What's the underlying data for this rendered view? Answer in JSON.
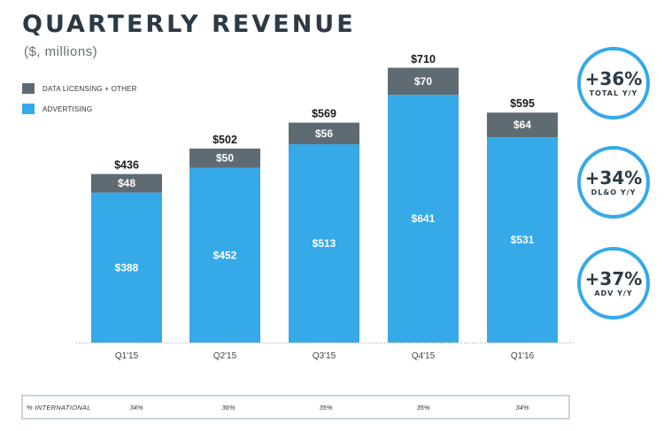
{
  "header": {
    "title": "QUARTERLY REVENUE",
    "subtitle": "($, millions)"
  },
  "legend": {
    "items": [
      {
        "label": "DATA LICENSING + OTHER",
        "color": "#5f6b72"
      },
      {
        "label": "ADVERTISING",
        "color": "#36a9e9"
      }
    ]
  },
  "chart_data": {
    "type": "bar",
    "stacked": true,
    "categories": [
      "Q1'15",
      "Q2'15",
      "Q3'15",
      "Q4'15",
      "Q1'16"
    ],
    "series": [
      {
        "name": "ADVERTISING",
        "color": "#36a9e9",
        "values": [
          388,
          452,
          513,
          641,
          531
        ],
        "labels": [
          "$388",
          "$452",
          "$513",
          "$641",
          "$531"
        ]
      },
      {
        "name": "DATA LICENSING + OTHER",
        "color": "#5f6b72",
        "values": [
          48,
          50,
          56,
          70,
          64
        ],
        "labels": [
          "$48",
          "$50",
          "$56",
          "$70",
          "$64"
        ]
      }
    ],
    "totals": [
      436,
      502,
      569,
      710,
      595
    ],
    "total_labels": [
      "$436",
      "$502",
      "$569",
      "$710",
      "$595"
    ],
    "title": "QUARTERLY REVENUE",
    "ylabel": "($, millions)",
    "ylim": [
      0,
      710
    ],
    "grid": false,
    "legend_position": "top-left"
  },
  "badges": [
    {
      "value": "+36%",
      "caption": "TOTAL Y/Y"
    },
    {
      "value": "+34%",
      "caption": "DL&O Y/Y"
    },
    {
      "value": "+37%",
      "caption": "ADV Y/Y"
    }
  ],
  "international": {
    "label": "% INTERNATIONAL",
    "values": [
      "34%",
      "36%",
      "35%",
      "35%",
      "34%"
    ]
  }
}
